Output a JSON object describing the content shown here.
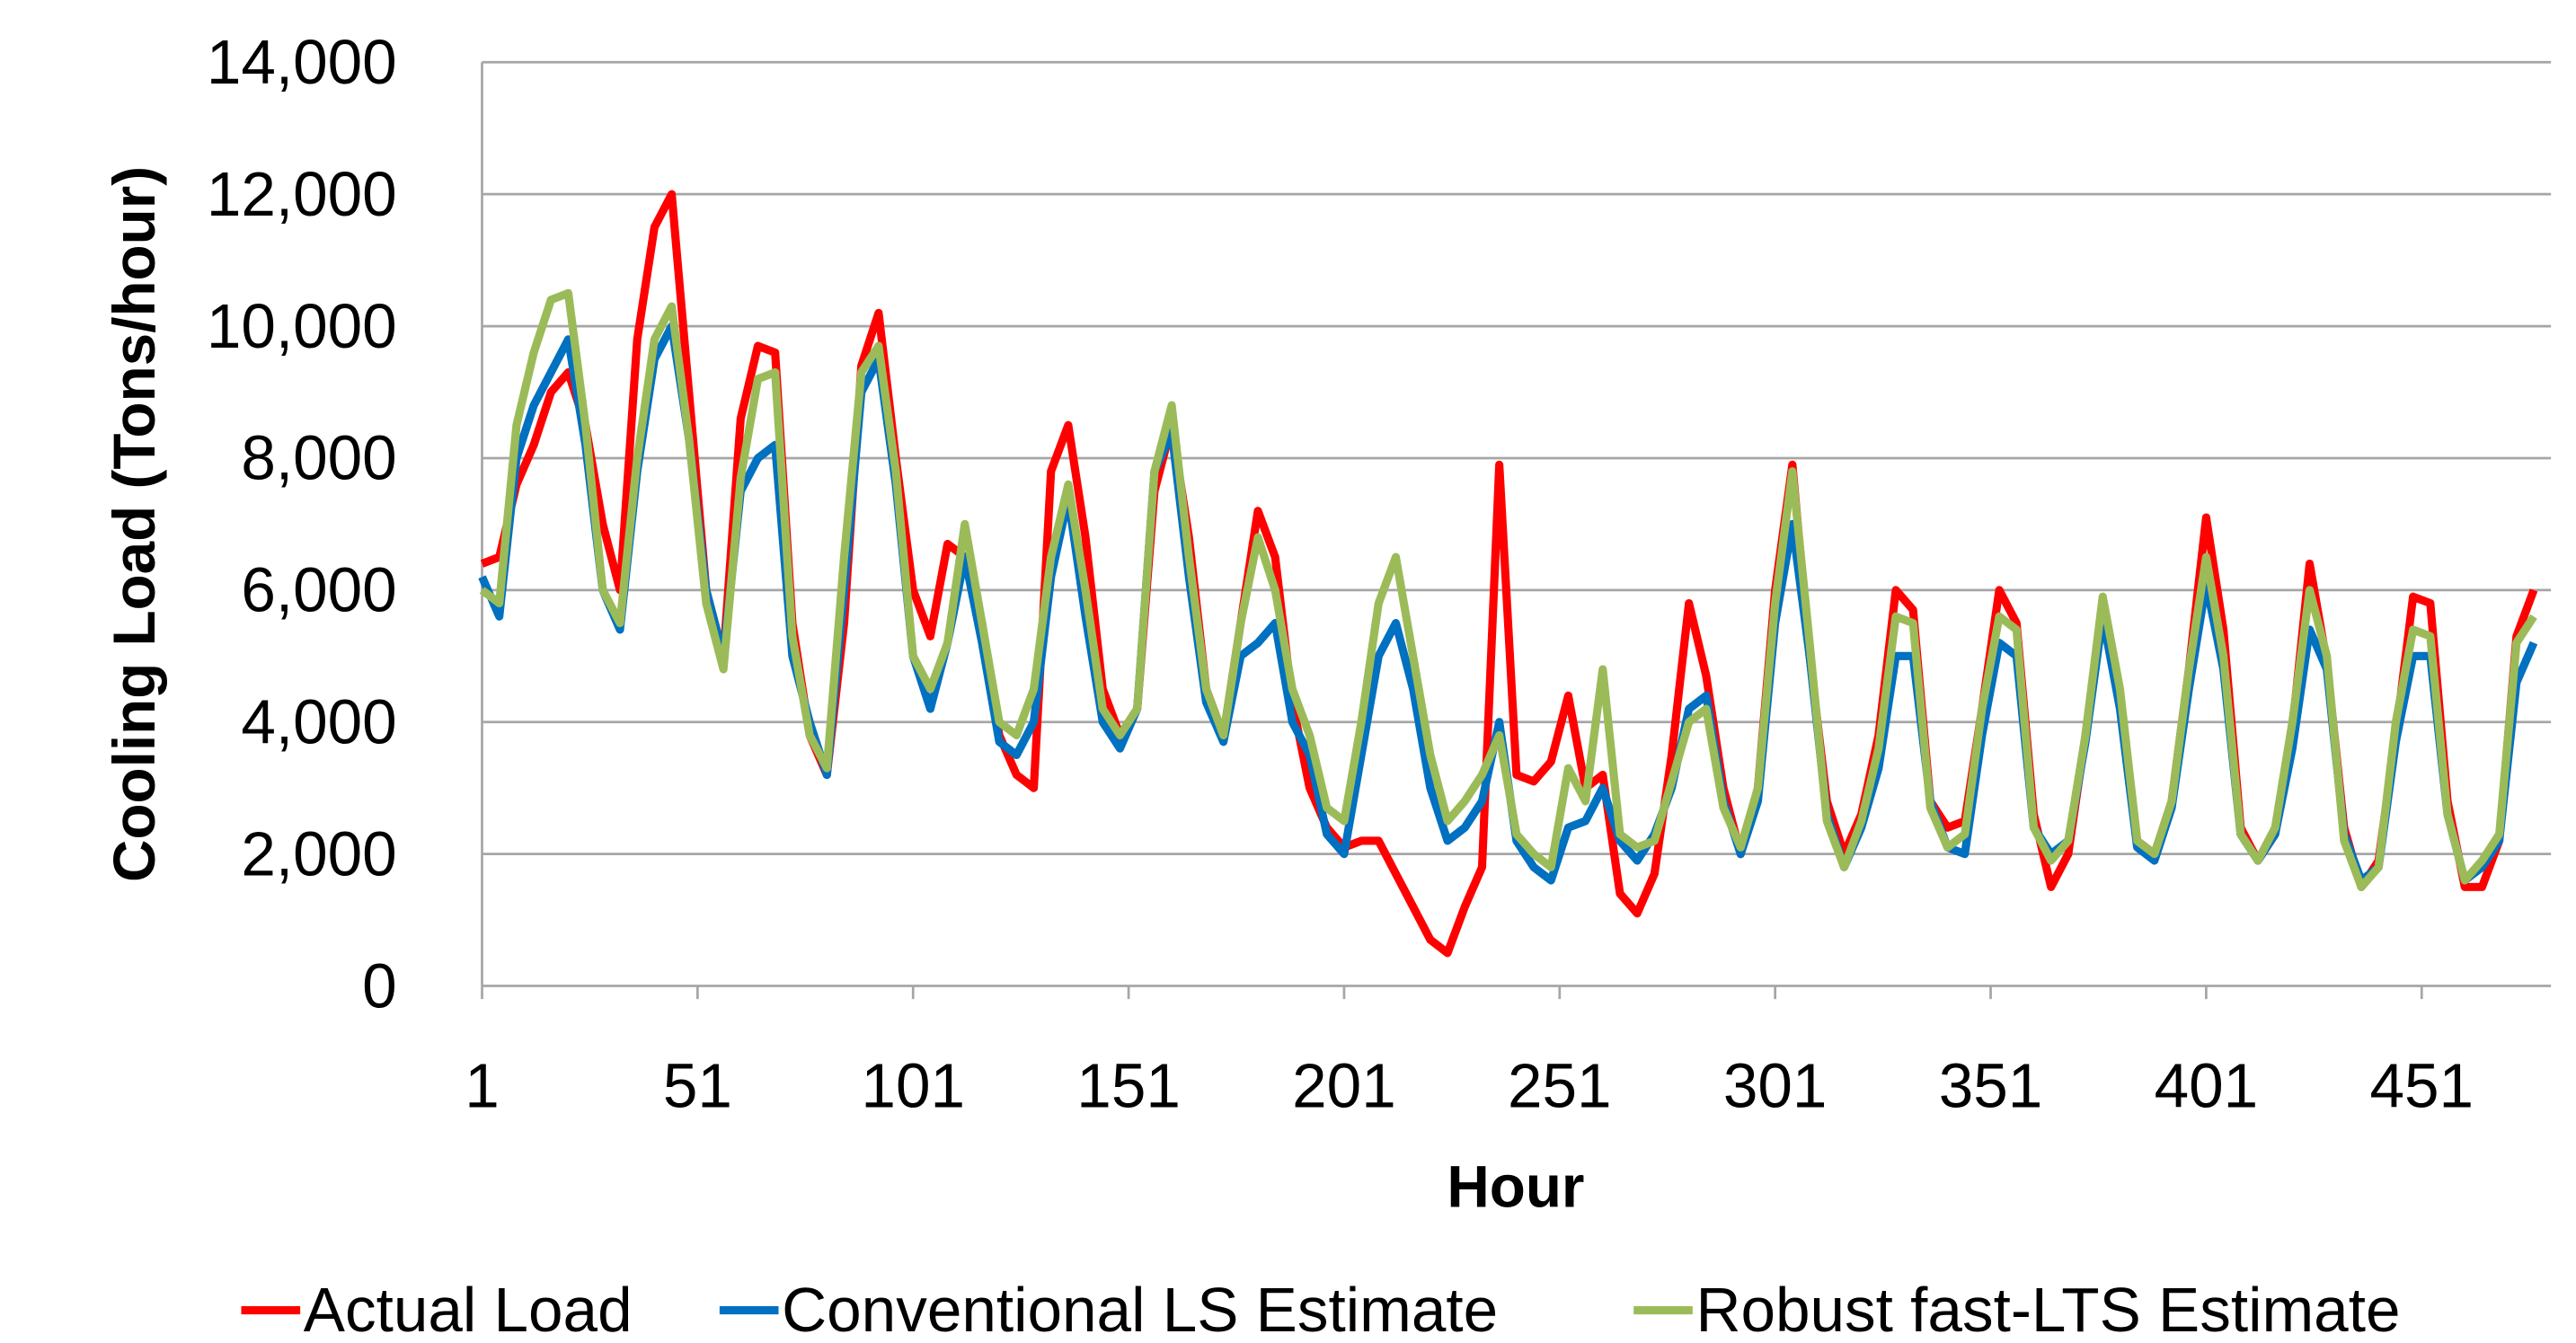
{
  "chart_data": {
    "type": "line",
    "xlabel": "Hour",
    "ylabel": "Cooling Load (Tons/hour)",
    "xlim": [
      1,
      481
    ],
    "xticks": [
      1,
      51,
      101,
      151,
      201,
      251,
      301,
      351,
      401,
      451
    ],
    "ylim": [
      0,
      14000
    ],
    "yticks": [
      0,
      {
        "value": 2000,
        "label": "2,000"
      },
      {
        "value": 4000,
        "label": "4,000"
      },
      {
        "value": 6000,
        "label": "6,000"
      },
      {
        "value": 8000,
        "label": "8,000"
      },
      {
        "value": 10000,
        "label": "10,000"
      },
      {
        "value": 12000,
        "label": "12,000"
      },
      {
        "value": 14000,
        "label": "14,000"
      }
    ],
    "grid": true,
    "legend": "bottom",
    "x": [
      1,
      5,
      9,
      13,
      17,
      21,
      25,
      29,
      33,
      37,
      41,
      45,
      49,
      53,
      57,
      61,
      65,
      69,
      73,
      77,
      81,
      85,
      89,
      93,
      97,
      101,
      105,
      109,
      113,
      117,
      121,
      125,
      129,
      133,
      137,
      141,
      145,
      149,
      153,
      157,
      161,
      165,
      169,
      173,
      177,
      181,
      185,
      189,
      193,
      197,
      201,
      205,
      209,
      213,
      217,
      221,
      225,
      229,
      233,
      237,
      241,
      245,
      249,
      253,
      257,
      261,
      265,
      269,
      273,
      277,
      281,
      285,
      289,
      293,
      297,
      301,
      305,
      309,
      313,
      317,
      321,
      325,
      329,
      333,
      337,
      341,
      345,
      349,
      353,
      357,
      361,
      365,
      369,
      373,
      377,
      381,
      385,
      389,
      393,
      397,
      401,
      405,
      409,
      413,
      417,
      421,
      425,
      429,
      433,
      437,
      441,
      445,
      449,
      453,
      457,
      461,
      465,
      469,
      473,
      477
    ],
    "series": [
      {
        "name": "Actual Load",
        "color": "#ff0000",
        "values": [
          6400,
          6500,
          7600,
          8200,
          9000,
          9300,
          8500,
          7000,
          6000,
          9800,
          11500,
          12000,
          9000,
          6000,
          5000,
          8600,
          9700,
          9600,
          5500,
          3800,
          3200,
          5500,
          9400,
          10200,
          8000,
          6000,
          5300,
          6700,
          6500,
          5500,
          3800,
          3200,
          3000,
          7800,
          8500,
          6800,
          4500,
          3800,
          4200,
          7500,
          8500,
          6800,
          4500,
          3800,
          5500,
          7200,
          6500,
          4300,
          3000,
          2400,
          2100,
          2200,
          2200,
          1700,
          1200,
          700,
          500,
          1200,
          1800,
          7900,
          3200,
          3100,
          3400,
          4400,
          3000,
          3200,
          1400,
          1100,
          1700,
          3500,
          5800,
          4700,
          3000,
          2000,
          3000,
          6000,
          7900,
          5000,
          2800,
          2000,
          2600,
          3800,
          6000,
          5700,
          2800,
          2400,
          2500,
          4200,
          6000,
          5500,
          2600,
          1500,
          2000,
          3800,
          5800,
          4400,
          2200,
          2000,
          2800,
          4800,
          7100,
          5400,
          2400,
          1900,
          2300,
          3900,
          6400,
          4900,
          2400,
          1500,
          1900,
          3800,
          5900,
          5800,
          2800,
          1500,
          1500,
          2200,
          5300,
          6000
        ]
      },
      {
        "name": "Conventional LS Estimate",
        "color": "#0070c0",
        "values": [
          6200,
          5600,
          8000,
          8800,
          9300,
          9800,
          8200,
          6000,
          5400,
          7800,
          9500,
          10000,
          8300,
          6000,
          5000,
          7500,
          8000,
          8200,
          5000,
          4000,
          3200,
          6000,
          9000,
          9500,
          7600,
          5000,
          4200,
          5200,
          6500,
          5200,
          3700,
          3500,
          4000,
          6200,
          7400,
          5600,
          4000,
          3600,
          4200,
          7800,
          8400,
          6200,
          4300,
          3700,
          5000,
          5200,
          5500,
          4000,
          3500,
          2300,
          2000,
          3500,
          5000,
          5500,
          4500,
          3000,
          2200,
          2400,
          2800,
          4000,
          2200,
          1800,
          1600,
          2400,
          2500,
          3000,
          2200,
          1900,
          2300,
          3000,
          4200,
          4400,
          2800,
          2000,
          2800,
          5500,
          7000,
          5000,
          2600,
          1800,
          2400,
          3300,
          5000,
          5000,
          2800,
          2100,
          2000,
          3800,
          5200,
          5000,
          2400,
          2000,
          2200,
          3700,
          5600,
          4200,
          2100,
          1900,
          2700,
          4500,
          6100,
          4800,
          2300,
          1900,
          2300,
          3600,
          5400,
          4800,
          2300,
          1600,
          1800,
          3700,
          5000,
          5000,
          2600,
          1600,
          1800,
          2200,
          4600,
          5200
        ]
      },
      {
        "name": "Robust fast-LTS Estimate",
        "color": "#9bbb59",
        "values": [
          6000,
          5800,
          8500,
          9600,
          10400,
          10500,
          8500,
          6000,
          5500,
          8000,
          9800,
          10300,
          8300,
          5800,
          4800,
          7700,
          9200,
          9300,
          5300,
          3800,
          3300,
          6500,
          9300,
          9700,
          7800,
          5000,
          4500,
          5200,
          7000,
          5500,
          4000,
          3800,
          4500,
          6500,
          7600,
          6000,
          4200,
          3800,
          4200,
          7800,
          8800,
          6500,
          4500,
          3800,
          5500,
          6800,
          6000,
          4500,
          3800,
          2700,
          2500,
          4000,
          5800,
          6500,
          5000,
          3500,
          2500,
          2800,
          3200,
          3800,
          2300,
          2000,
          1800,
          3300,
          2800,
          4800,
          2300,
          2100,
          2200,
          3100,
          4000,
          4200,
          2700,
          2100,
          3000,
          5800,
          7800,
          5200,
          2500,
          1800,
          2500,
          3600,
          5600,
          5500,
          2700,
          2100,
          2300,
          4200,
          5600,
          5400,
          2400,
          1900,
          2200,
          3800,
          5900,
          4500,
          2200,
          2000,
          2800,
          4800,
          6500,
          5000,
          2300,
          1900,
          2400,
          4000,
          6000,
          5000,
          2200,
          1500,
          1800,
          4000,
          5400,
          5300,
          2600,
          1600,
          1900,
          2300,
          5200,
          5600
        ]
      }
    ]
  }
}
